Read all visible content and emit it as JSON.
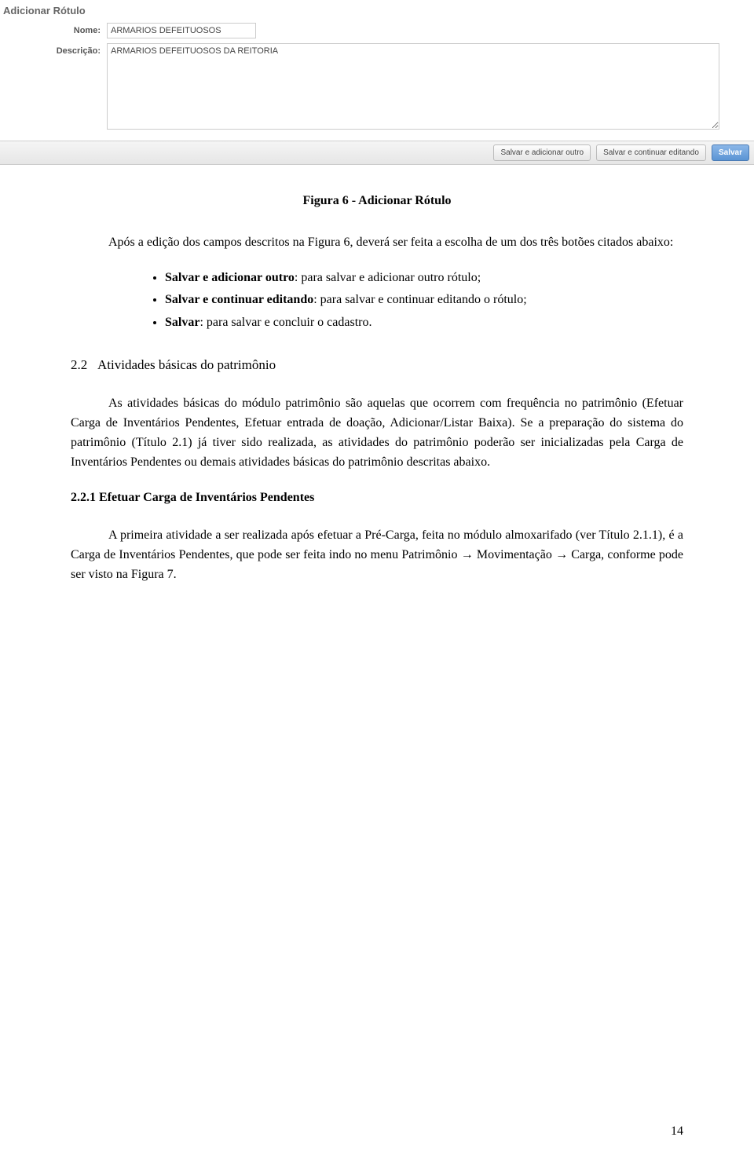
{
  "form": {
    "title": "Adicionar Rótulo",
    "nome_label": "Nome:",
    "nome_value": "ARMARIOS DEFEITUOSOS",
    "desc_label": "Descrição:",
    "desc_value": "ARMARIOS DEFEITUOSOS DA REITORIA",
    "buttons": {
      "save_add": "Salvar e adicionar outro",
      "save_edit": "Salvar e continuar editando",
      "save": "Salvar"
    }
  },
  "doc": {
    "fig_caption": "Figura 6 - Adicionar Rótulo",
    "intro_para": "Após a edição dos campos descritos na Figura 6, deverá ser feita a escolha de um dos três botões citados abaixo:",
    "bullet1_strong": "Salvar e adicionar outro",
    "bullet1_rest": ": para salvar e adicionar outro rótulo;",
    "bullet2_strong": "Salvar e continuar editando",
    "bullet2_rest": ": para salvar e continuar editando o rótulo;",
    "bullet3_strong": "Salvar",
    "bullet3_rest": ": para salvar e concluir o cadastro.",
    "sec_num": "2.2",
    "sec_title": "Atividades básicas do patrimônio",
    "sec_para": "As atividades básicas do módulo patrimônio são aquelas que ocorrem com frequência no patrimônio (Efetuar Carga de Inventários Pendentes, Efetuar entrada de doação, Adicionar/Listar Baixa). Se a preparação do sistema do patrimônio (Título 2.1) já tiver sido realizada, as atividades do patrimônio poderão ser inicializadas pela Carga de Inventários Pendentes ou demais atividades básicas do patrimônio descritas abaixo.",
    "subsec_title": "2.2.1 Efetuar Carga de Inventários Pendentes",
    "subsec_para": "A primeira atividade a ser realizada após efetuar a Pré-Carga, feita no módulo almoxarifado (ver Título 2.1.1), é a Carga de Inventários Pendentes, que pode ser feita indo no menu Patrimônio → Movimentação → Carga, conforme pode ser visto na Figura 7.",
    "page_number": "14"
  }
}
